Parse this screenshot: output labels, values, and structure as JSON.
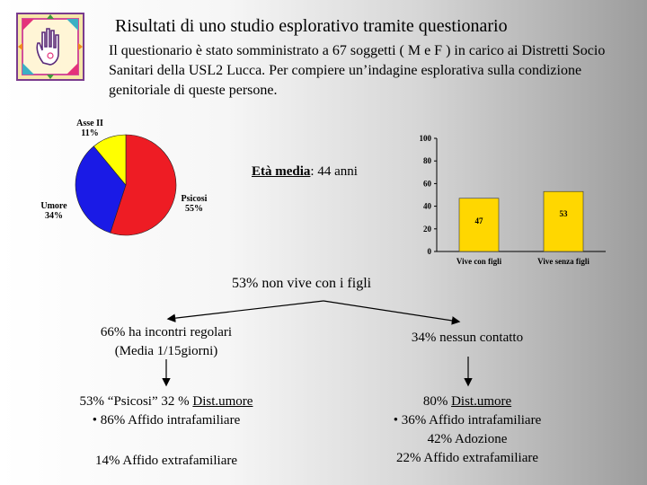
{
  "header": {
    "title": "Risultati di uno studio esplorativo tramite questionario",
    "intro": "Il questionario è stato somministrato a 67 soggetti ( M e F ) in carico ai Distretti Socio Sanitari della USL2 Lucca. Per compiere un’indagine esplorativa sulla condizione genitoriale di queste persone."
  },
  "age_note": {
    "label": "Età media",
    "value": ": 44 anni"
  },
  "headline": "53% non vive con i figli",
  "left_branch": {
    "top_line1": "66% ha incontri regolari",
    "top_line2": "(Media 1/15giorni)",
    "bottom_pre": "53% “Psicosi” 32 % ",
    "bottom_underlined": "Dist.umore",
    "bottom_line2": "• 86% Affido intrafamiliare",
    "bottom_line3": "14% Affido extrafamiliare"
  },
  "right_branch": {
    "top_line1": "34% nessun contatto",
    "bottom_pre": "80% ",
    "bottom_underlined": "Dist.umore",
    "bottom_line2": "• 36% Affido intrafamiliare",
    "bottom_line3": "42% Adozione",
    "bottom_line4": "22% Affido extrafamiliare"
  },
  "colors": {
    "pie_red": "#ee1c24",
    "pie_blue": "#1a1ae6",
    "pie_yellow": "#ffff00",
    "bar_yellow": "#ffd700",
    "arrow": "#000000"
  },
  "chart_data": [
    {
      "type": "pie",
      "slices": [
        {
          "label": "Psicosi",
          "percent_label": "55%",
          "value": 55,
          "color": "#ee1c24"
        },
        {
          "label": "Umore",
          "percent_label": "34%",
          "value": 34,
          "color": "#1a1ae6"
        },
        {
          "label": "Asse II",
          "percent_label": "11%",
          "value": 11,
          "color": "#ffff00"
        }
      ]
    },
    {
      "type": "bar",
      "categories": [
        "Vive con figli",
        "Vive senza figli"
      ],
      "values": [
        47,
        53
      ],
      "ylim": [
        0,
        100
      ],
      "yticks": [
        "0",
        "20",
        "40",
        "60",
        "80",
        "100"
      ],
      "ytick_values": [
        0,
        20,
        40,
        60,
        80,
        100
      ],
      "grid": false,
      "color": "#ffd700"
    }
  ]
}
